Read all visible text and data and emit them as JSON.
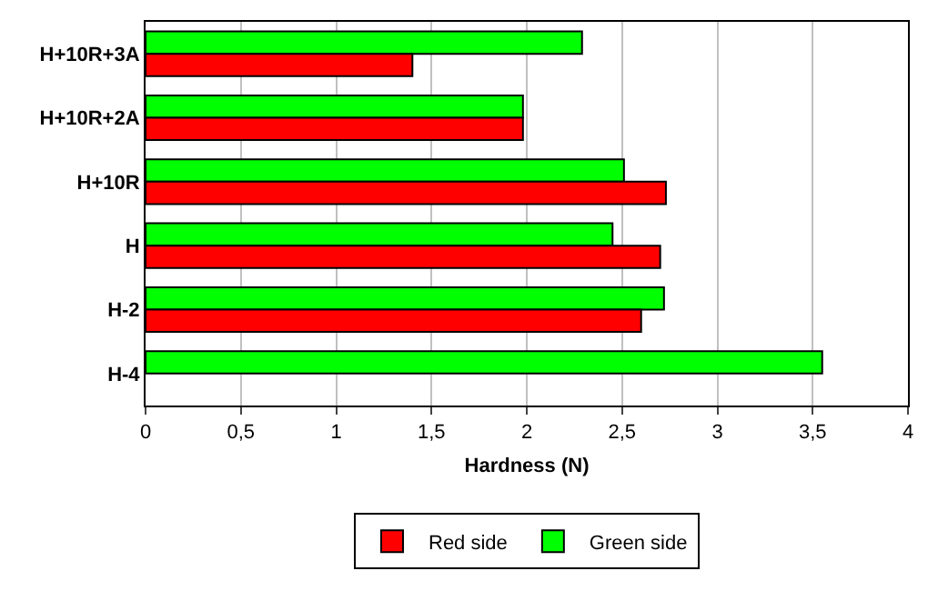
{
  "chart_data": {
    "type": "bar",
    "orientation": "horizontal",
    "xlabel": "Hardness (N)",
    "categories": [
      "H+10R+3A",
      "H+10R+2A",
      "H+10R",
      "H",
      "H-2",
      "H-4"
    ],
    "series": [
      {
        "name": "Red side",
        "color": "#ff0000",
        "values": [
          1.4,
          1.98,
          2.73,
          2.7,
          2.6,
          null
        ]
      },
      {
        "name": "Green side",
        "color": "#00ff00",
        "values": [
          2.29,
          1.98,
          2.51,
          2.45,
          2.72,
          3.55
        ]
      }
    ],
    "xlim": [
      0,
      4
    ],
    "xticks": [
      {
        "value": 0,
        "label": "0"
      },
      {
        "value": 0.5,
        "label": "0,5"
      },
      {
        "value": 1,
        "label": "1"
      },
      {
        "value": 1.5,
        "label": "1,5"
      },
      {
        "value": 2,
        "label": "2"
      },
      {
        "value": 2.5,
        "label": "2,5"
      },
      {
        "value": 3,
        "label": "3"
      },
      {
        "value": 3.5,
        "label": "3,5"
      },
      {
        "value": 4,
        "label": "4"
      }
    ],
    "grid": "x",
    "legend": "bottom"
  }
}
